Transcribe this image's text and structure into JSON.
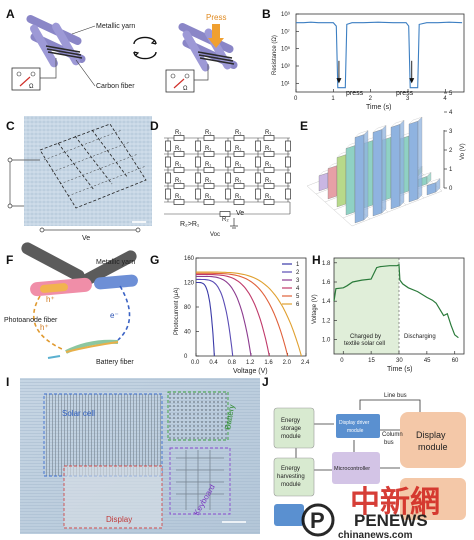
{
  "panels": {
    "A": {
      "label": "A",
      "metallic_yarn": "Metallic yarn",
      "carbon_fiber": "Carbon fiber",
      "press": "Press",
      "meter_unit": "Ω"
    },
    "B": {
      "label": "B",
      "press_1": "press",
      "press_2": "press"
    },
    "C": {
      "label": "C",
      "ve": "Ve"
    },
    "D": {
      "label": "D",
      "res_eq": "R₂>R₁",
      "ve": "Ve",
      "voc": "Voc"
    },
    "E": {
      "label": "E"
    },
    "F": {
      "label": "F",
      "metallic_yarn": "Metallic yarn",
      "photoanode": "Photoanode fiber",
      "battery": "Battery fiber",
      "h_plus": "h⁺",
      "e_minus": "e⁻"
    },
    "G": {
      "label": "G"
    },
    "H": {
      "label": "H",
      "charged": [
        "Charged by",
        "textile solar cell"
      ],
      "discharging": "Discharging"
    },
    "I": {
      "label": "I",
      "solar_cell": "Solar cell",
      "battery": "Battery",
      "display": "Display",
      "keyboard": "Keyboard"
    },
    "J": {
      "label": "J",
      "line_bus": "Line bus",
      "energy_storage": [
        "Energy",
        "storage",
        "module"
      ],
      "display_driver": [
        "Display driver",
        "module"
      ],
      "column_bus": [
        "Column",
        "bus"
      ],
      "display_module": [
        "Display",
        "module"
      ],
      "energy_harvesting": [
        "Energy",
        "harvesting",
        "module"
      ],
      "microcontroller": "Microcontroller"
    }
  },
  "watermark": {
    "chinese": "中新網",
    "latin": "PENEWS",
    "site": "chinanews.com"
  },
  "chart_data": [
    {
      "panel": "B",
      "type": "line",
      "title": "",
      "xlabel": "Time (s)",
      "ylabel": "Resistance (Ω)",
      "xlim": [
        0,
        4.5
      ],
      "ylim_log10": [
        0,
        9
      ],
      "xticks": [
        "0",
        "1",
        "2",
        "3",
        "4"
      ],
      "yticks": [
        "10¹",
        "10³",
        "10⁵",
        "10⁷",
        "10⁹"
      ],
      "series": [
        {
          "x": [
            0,
            0.2,
            0.4,
            0.6,
            0.8,
            1.0,
            1.08,
            1.12,
            1.2,
            1.32,
            1.36,
            1.5,
            1.8,
            2.2,
            2.6,
            2.95,
            3.02,
            3.06,
            3.15,
            3.26,
            3.3,
            3.5,
            3.8,
            4.1,
            4.45
          ],
          "log10_y": [
            8.0,
            8.0,
            8.05,
            8.0,
            8.0,
            8.0,
            7.6,
            0.5,
            0.5,
            0.5,
            7.8,
            8.0,
            8.0,
            8.05,
            8.0,
            8.0,
            7.6,
            0.5,
            0.5,
            0.5,
            7.8,
            8.0,
            8.0,
            8.05,
            8.0
          ],
          "color": "#3d7fc2"
        }
      ]
    },
    {
      "panel": "E",
      "type": "bar",
      "title": "",
      "zlabel": "Vo (V)",
      "zticks": [
        "0",
        "1",
        "2",
        "3",
        "4",
        "5"
      ],
      "zlim": [
        0,
        5
      ],
      "grid_rows": 5,
      "grid_cols": 5,
      "values": [
        [
          4.5,
          4.4,
          4.3,
          4.1,
          0.5
        ],
        [
          3.5,
          3.4,
          3.2,
          2.9,
          0.4
        ],
        [
          2.6,
          2.5,
          2.4,
          2.0,
          0.3
        ],
        [
          1.6,
          1.5,
          1.4,
          1.2,
          0.25
        ],
        [
          0.8,
          0.7,
          0.6,
          0.4,
          0.2
        ]
      ],
      "row_colors": [
        "#8fb3e0",
        "#8fd1c4",
        "#b7d98a",
        "#e6a0a6",
        "#c9b6e3"
      ]
    },
    {
      "panel": "G",
      "type": "line",
      "title": "",
      "xlabel": "Voltage (V)",
      "ylabel": "Photocurrent (μA)",
      "xlim": [
        0,
        2.4
      ],
      "ylim": [
        0,
        160
      ],
      "xticks": [
        "0.0",
        "0.4",
        "0.8",
        "1.2",
        "1.6",
        "2.0",
        "2.4"
      ],
      "yticks": [
        "0",
        "40",
        "80",
        "120",
        "160"
      ],
      "legend": "top-right",
      "series": [
        {
          "name": "1",
          "isc": 120,
          "voc": 0.4,
          "color": "#3a3aa8"
        },
        {
          "name": "2",
          "isc": 125,
          "voc": 0.8,
          "color": "#5a4cb5"
        },
        {
          "name": "3",
          "isc": 130,
          "voc": 1.2,
          "color": "#8c3b8f"
        },
        {
          "name": "4",
          "isc": 133,
          "voc": 1.6,
          "color": "#c03a6a"
        },
        {
          "name": "5",
          "isc": 135,
          "voc": 2.0,
          "color": "#e0603a"
        },
        {
          "name": "6",
          "isc": 137,
          "voc": 2.3,
          "color": "#e0a030"
        }
      ]
    },
    {
      "panel": "H",
      "type": "line",
      "title": "",
      "xlabel": "Time (s)",
      "ylabel": "Voltage (V)",
      "xlim": [
        -5,
        65
      ],
      "ylim": [
        0.85,
        1.85
      ],
      "xticks": [
        "0",
        "15",
        "30",
        "45",
        "60"
      ],
      "yticks": [
        "1.0",
        "1.2",
        "1.4",
        "1.6",
        "1.8"
      ],
      "series": [
        {
          "x": [
            -5,
            -4,
            0,
            2,
            5,
            10,
            15,
            18,
            20,
            25,
            29,
            30,
            30.5,
            32,
            35,
            40,
            45,
            48,
            50,
            54,
            56,
            58,
            60,
            62
          ],
          "y": [
            1.4,
            1.53,
            1.54,
            1.56,
            1.6,
            1.62,
            1.63,
            1.75,
            1.76,
            1.77,
            1.77,
            1.78,
            1.62,
            1.58,
            1.54,
            1.5,
            1.44,
            1.41,
            1.38,
            1.25,
            1.27,
            1.15,
            1.05,
            1.02
          ],
          "color": "#2a7a3a"
        }
      ],
      "charge_end_x": 30
    }
  ],
  "colors": {
    "bg": "#ffffff",
    "yarn": "#8a86c7",
    "carbon": "#2b2b2b",
    "press_arrow": "#f0a030",
    "green_box": "#d8ead0",
    "blue_box": "#5a90d0",
    "purple_box": "#d3c4e6",
    "orange_box": "#f4c8a8"
  }
}
